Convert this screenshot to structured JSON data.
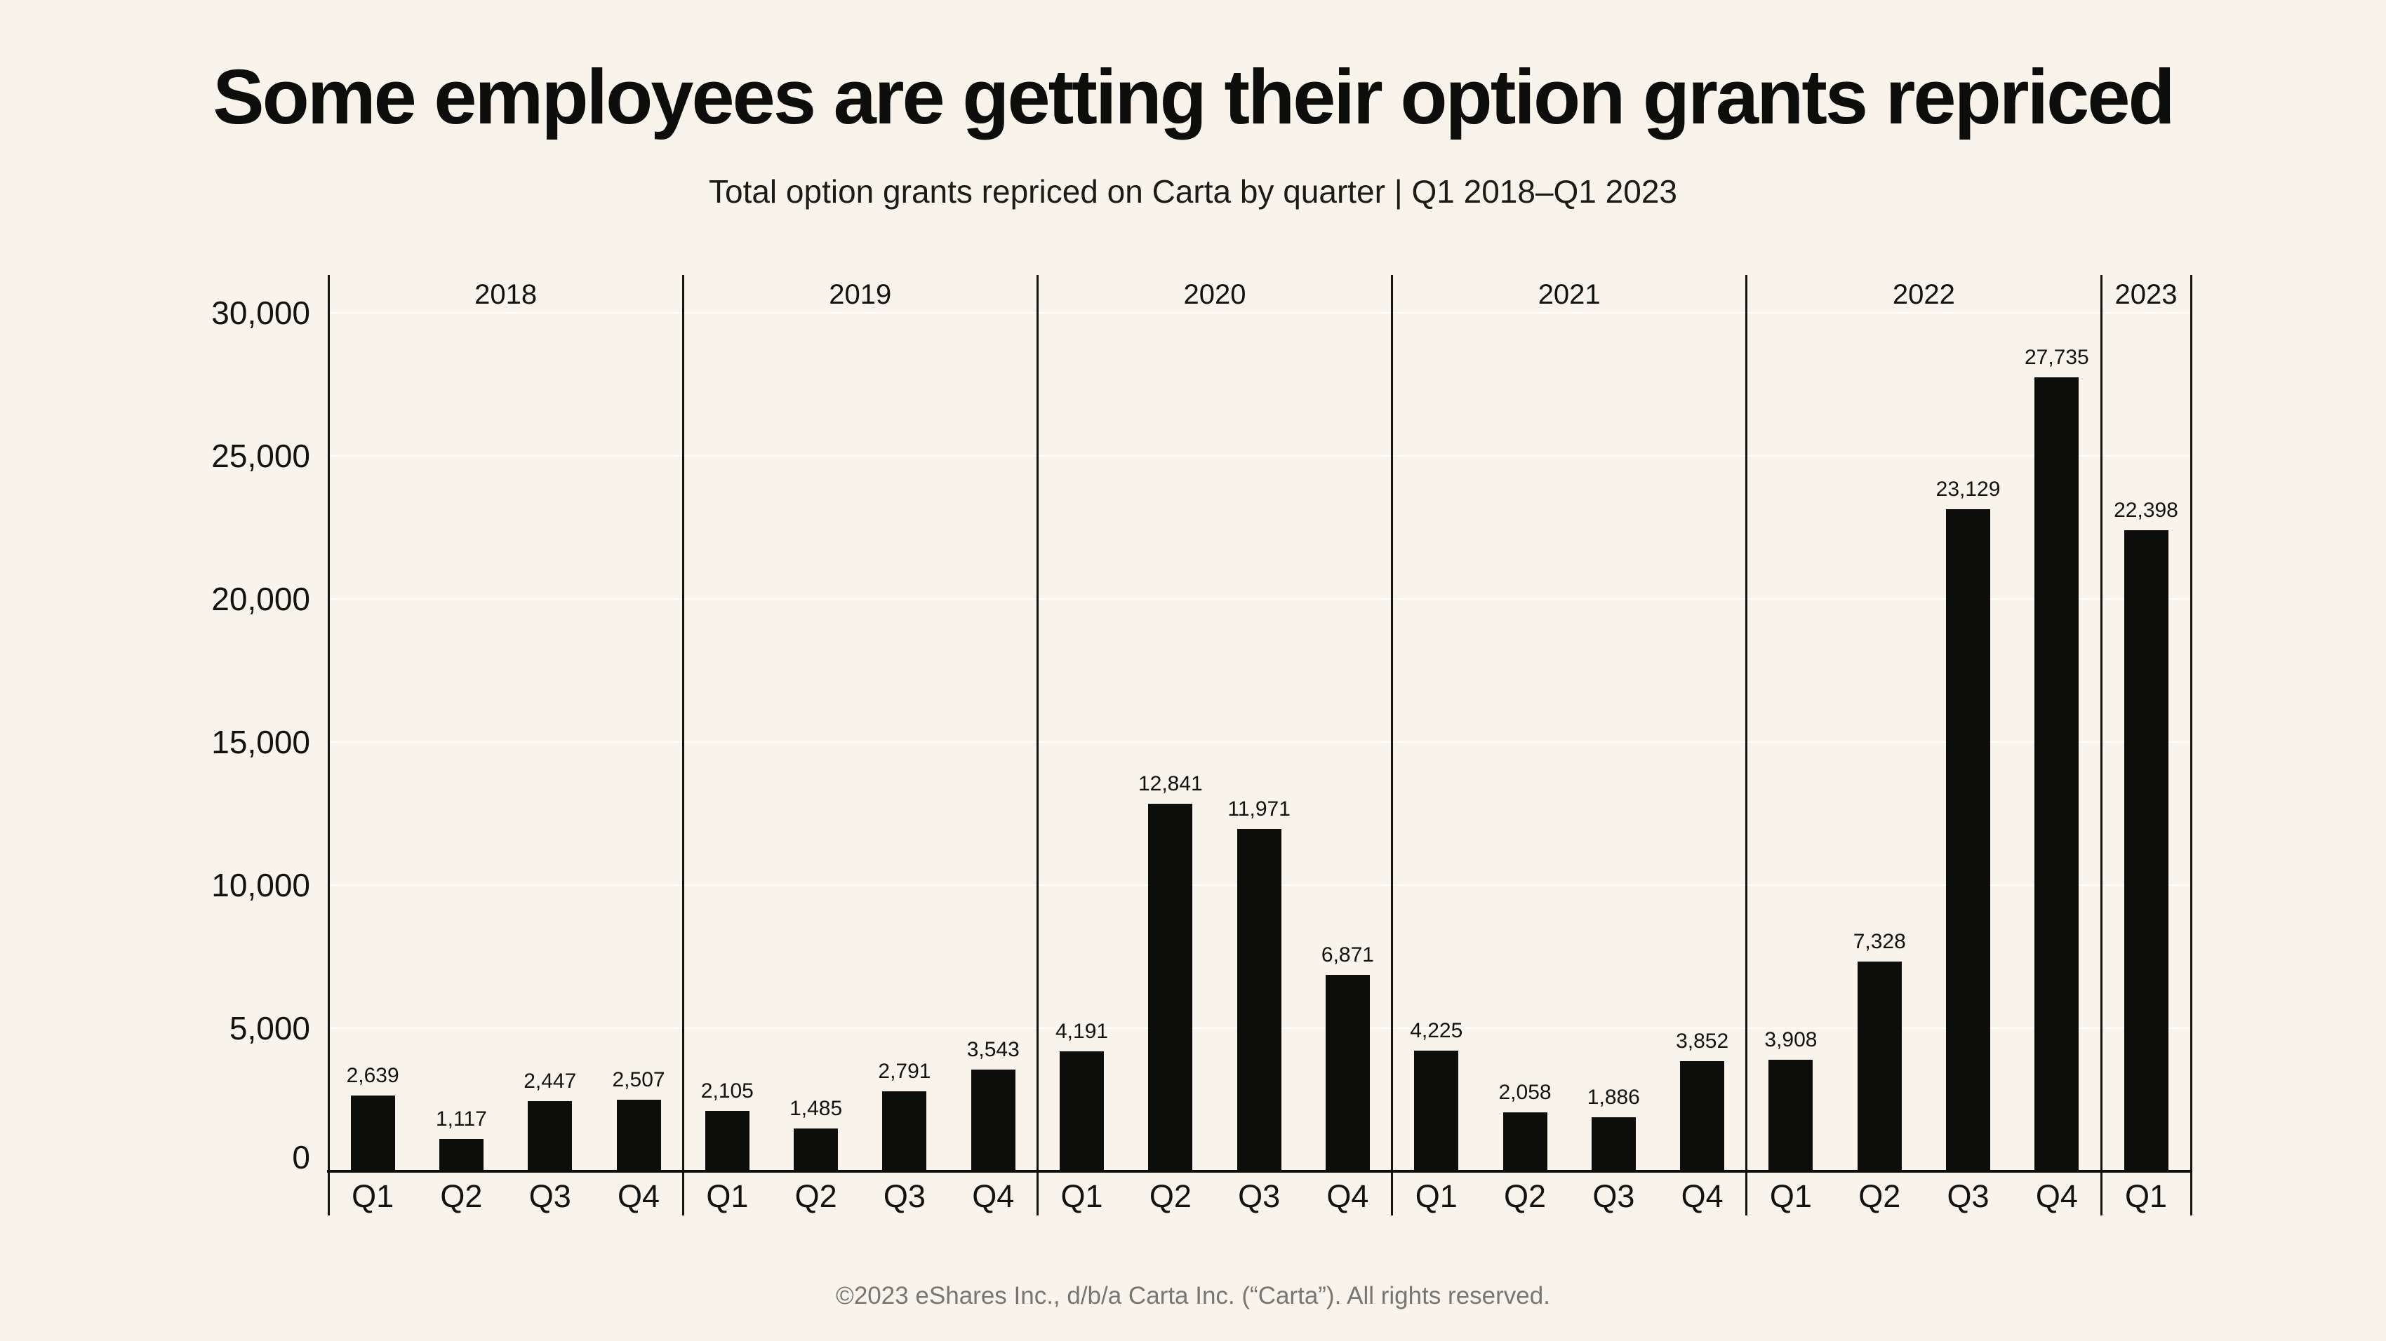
{
  "title": "Some employees are getting their option grants repriced",
  "subtitle": "Total option grants repriced on Carta by quarter | Q1 2018–Q1 2023",
  "footer": "©2023 eShares Inc., d/b/a Carta Inc. (“Carta”). All rights reserved.",
  "colors": {
    "background": "#f8f4ec",
    "bar": "#0d0d0b",
    "ink": "#0d0d0b",
    "footer_ink": "#787672",
    "gridline": "rgba(255,255,255,0.72)",
    "axis_line": "#141410"
  },
  "chart_data": {
    "type": "bar",
    "title": "Some employees are getting their option grants repriced",
    "subtitle": "Total option grants repriced on Carta by quarter | Q1 2018–Q1 2023",
    "xlabel": "",
    "ylabel": "",
    "ylim": [
      0,
      31300
    ],
    "yticks": [
      0,
      5000,
      10000,
      15000,
      20000,
      25000,
      30000
    ],
    "ytick_labels": [
      "0",
      "5,000",
      "10,000",
      "15,000",
      "20,000",
      "25,000",
      "30,000"
    ],
    "grid": "faint horizontal gridlines at each y tick",
    "legend": "none",
    "bar_color": "#0d0d0b",
    "groups": [
      {
        "year": "2018",
        "categories": [
          "Q1",
          "Q2",
          "Q3",
          "Q4"
        ],
        "values": [
          2639,
          1117,
          2447,
          2507
        ],
        "labels": [
          "2,639",
          "1,117",
          "2,447",
          "2,507"
        ]
      },
      {
        "year": "2019",
        "categories": [
          "Q1",
          "Q2",
          "Q3",
          "Q4"
        ],
        "values": [
          2105,
          1485,
          2791,
          3543
        ],
        "labels": [
          "2,105",
          "1,485",
          "2,791",
          "3,543"
        ]
      },
      {
        "year": "2020",
        "categories": [
          "Q1",
          "Q2",
          "Q3",
          "Q4"
        ],
        "values": [
          4191,
          12841,
          11971,
          6871
        ],
        "labels": [
          "4,191",
          "12,841",
          "11,971",
          "6,871"
        ]
      },
      {
        "year": "2021",
        "categories": [
          "Q1",
          "Q2",
          "Q3",
          "Q4"
        ],
        "values": [
          4225,
          2058,
          1886,
          3852
        ],
        "labels": [
          "4,225",
          "2,058",
          "1,886",
          "3,852"
        ]
      },
      {
        "year": "2022",
        "categories": [
          "Q1",
          "Q2",
          "Q3",
          "Q4"
        ],
        "values": [
          3908,
          7328,
          23129,
          27735
        ],
        "labels": [
          "3,908",
          "7,328",
          "23,129",
          "27,735"
        ]
      },
      {
        "year": "2023",
        "categories": [
          "Q1"
        ],
        "values": [
          22398
        ],
        "labels": [
          "22,398"
        ]
      }
    ]
  }
}
